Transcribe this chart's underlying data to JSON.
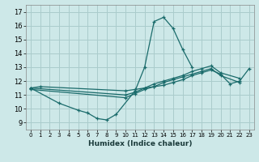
{
  "xlabel": "Humidex (Indice chaleur)",
  "xlim": [
    -0.5,
    23.5
  ],
  "ylim": [
    8.5,
    17.5
  ],
  "yticks": [
    9,
    10,
    11,
    12,
    13,
    14,
    15,
    16,
    17
  ],
  "xticks": [
    0,
    1,
    2,
    3,
    4,
    5,
    6,
    7,
    8,
    9,
    10,
    11,
    12,
    13,
    14,
    15,
    16,
    17,
    18,
    19,
    20,
    21,
    22,
    23
  ],
  "background_color": "#cde8e8",
  "grid_color": "#aacccc",
  "line_color": "#1a6b6b",
  "series": [
    {
      "x": [
        0,
        1,
        10,
        11,
        12,
        13,
        14,
        15,
        16,
        17,
        18,
        19,
        20,
        21,
        22,
        23
      ],
      "y": [
        11.5,
        11.6,
        11.3,
        11.4,
        11.5,
        11.6,
        11.7,
        11.9,
        12.1,
        12.4,
        12.6,
        12.8,
        12.5,
        11.8,
        12.0,
        12.9
      ]
    },
    {
      "x": [
        0,
        3,
        5,
        6,
        7,
        8,
        9,
        11,
        12,
        13,
        14,
        15,
        16,
        17
      ],
      "y": [
        11.5,
        10.4,
        9.9,
        9.7,
        9.3,
        9.2,
        9.6,
        11.3,
        13.0,
        16.3,
        16.6,
        15.8,
        14.3,
        13.0
      ]
    },
    {
      "x": [
        0,
        10,
        11,
        12,
        13,
        14,
        15,
        16,
        17,
        18,
        19,
        20,
        22
      ],
      "y": [
        11.5,
        11.0,
        11.2,
        11.5,
        11.8,
        12.0,
        12.2,
        12.4,
        12.7,
        12.9,
        13.1,
        12.6,
        12.2
      ]
    },
    {
      "x": [
        0,
        10,
        11,
        12,
        13,
        14,
        15,
        16,
        17,
        18,
        19,
        20,
        22
      ],
      "y": [
        11.4,
        10.8,
        11.1,
        11.4,
        11.6,
        11.9,
        12.1,
        12.3,
        12.5,
        12.7,
        12.9,
        12.4,
        11.9
      ]
    }
  ]
}
